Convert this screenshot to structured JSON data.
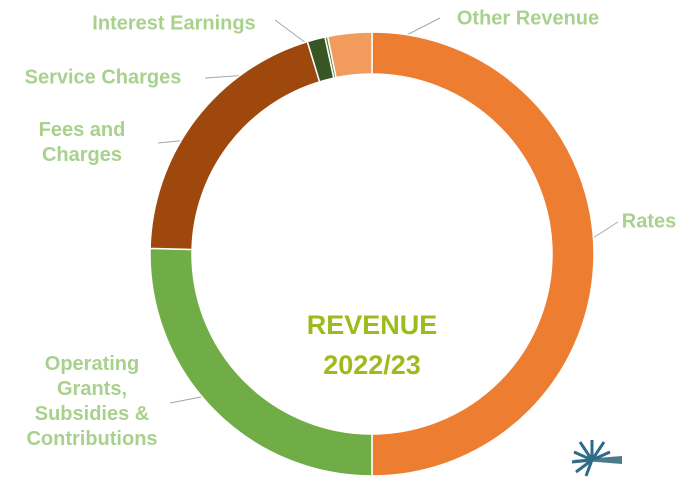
{
  "chart_data": {
    "type": "donut",
    "title": "REVENUE 2022/23",
    "categories": [
      "Rates",
      "Operating Grants, Subsidies & Contributions",
      "Fees and Charges",
      "Service Charges",
      "Interest Earnings",
      "Other Revenue"
    ],
    "values": [
      50,
      25.4,
      19.9,
      1.3,
      0.2,
      3.2
    ],
    "colors": [
      "#ed7d31",
      "#70ad47",
      "#9e480e",
      "#375623",
      "#548235",
      "#f19c5d"
    ]
  }
}
